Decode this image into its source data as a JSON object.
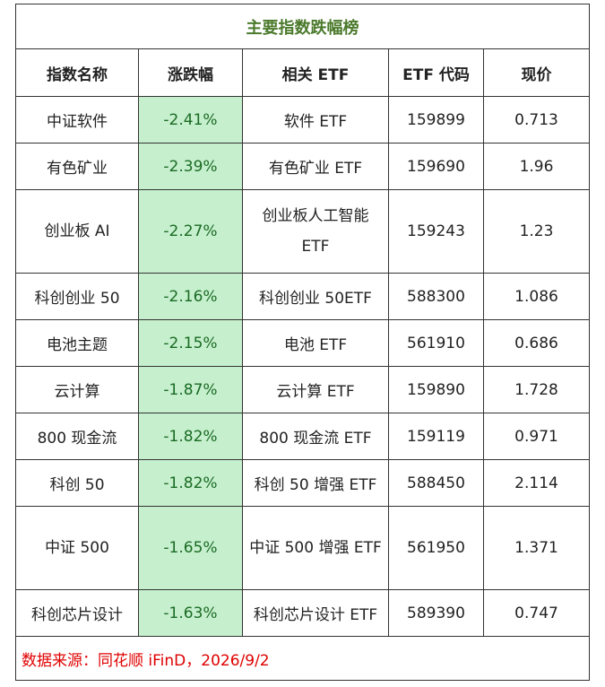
{
  "title": "主要指数跌幅榜",
  "headers": [
    "指数名称",
    "涨跌幅",
    "相关 ETF",
    "ETF 代码",
    "现价"
  ],
  "rows": [
    {
      "index": "中证软件",
      "change": "-2.41%",
      "etf": "软件 ETF",
      "code": "159899",
      "price": "0.713"
    },
    {
      "index": "有色矿业",
      "change": "-2.39%",
      "etf": "有色矿业 ETF",
      "code": "159690",
      "price": "1.96"
    },
    {
      "index": "创业板 AI",
      "change": "-2.27%",
      "etf": "创业板人工智能 ETF",
      "code": "159243",
      "price": "1.23"
    },
    {
      "index": "科创创业 50",
      "change": "-2.16%",
      "etf": "科创创业 50ETF",
      "code": "588300",
      "price": "1.086"
    },
    {
      "index": "电池主题",
      "change": "-2.15%",
      "etf": "电池 ETF",
      "code": "561910",
      "price": "0.686"
    },
    {
      "index": "云计算",
      "change": "-1.87%",
      "etf": "云计算 ETF",
      "code": "159890",
      "price": "1.728"
    },
    {
      "index": "800 现金流",
      "change": "-1.82%",
      "etf": "800 现金流 ETF",
      "code": "159119",
      "price": "0.971"
    },
    {
      "index": "科创 50",
      "change": "-1.82%",
      "etf": "科创 50 增强 ETF",
      "code": "588450",
      "price": "2.114"
    },
    {
      "index": "中证 500",
      "change": "-1.65%",
      "etf": "中证 500 增强 ETF",
      "code": "561950",
      "price": "1.371"
    },
    {
      "index": "科创芯片设计",
      "change": "-1.63%",
      "etf": "科创芯片设计 ETF",
      "code": "589390",
      "price": "0.747"
    }
  ],
  "source": "数据来源：同花顺 iFinD，2026/9/2",
  "colors": {
    "title": "#4b7a2c",
    "change_bg": "#c6efce",
    "change_text": "#1a6b23",
    "source": "#e00000"
  }
}
